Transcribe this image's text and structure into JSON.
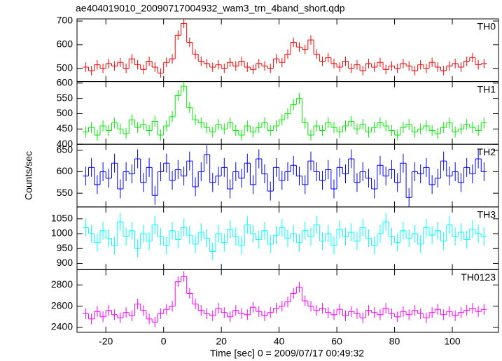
{
  "chart_data": {
    "type": "line",
    "title": "ae404019010_20090717004932_wam3_trn_4band_short.qdp",
    "xlabel": "Time [sec] 0 = 2009/07/17 00:49:32",
    "ylabel": "Counts/sec",
    "xlim": [
      -30,
      116
    ],
    "xticks": [
      -20,
      0,
      20,
      40,
      60,
      80,
      100
    ],
    "bin_width": 2,
    "x": [
      -27,
      -25,
      -23,
      -21,
      -19,
      -17,
      -15,
      -13,
      -11,
      -9,
      -7,
      -5,
      -3,
      -1,
      1,
      3,
      5,
      7,
      9,
      11,
      13,
      15,
      17,
      19,
      21,
      23,
      25,
      27,
      29,
      31,
      33,
      35,
      37,
      39,
      41,
      43,
      45,
      47,
      49,
      51,
      53,
      55,
      57,
      59,
      61,
      63,
      65,
      67,
      69,
      71,
      73,
      75,
      77,
      79,
      81,
      83,
      85,
      87,
      89,
      91,
      93,
      95,
      97,
      99,
      101,
      103,
      105,
      107,
      109,
      111
    ],
    "series": [
      {
        "name": "TH0",
        "color": "#ff0000",
        "error": 20,
        "ylim": [
          444,
          709
        ],
        "yticks": [
          500,
          600,
          700
        ],
        "values": [
          505,
          490,
          515,
          500,
          520,
          510,
          525,
          500,
          540,
          515,
          495,
          530,
          505,
          480,
          525,
          540,
          640,
          690,
          610,
          560,
          530,
          520,
          505,
          515,
          500,
          525,
          510,
          530,
          505,
          495,
          520,
          510,
          500,
          540,
          525,
          560,
          610,
          590,
          580,
          620,
          560,
          530,
          545,
          520,
          505,
          530,
          500,
          515,
          490,
          520,
          505,
          525,
          495,
          510,
          500,
          520,
          510,
          490,
          515,
          500,
          525,
          505,
          490,
          510,
          520,
          505,
          530,
          545,
          515,
          520
        ]
      },
      {
        "name": "TH1",
        "color": "#00ee00",
        "error": 18,
        "ylim": [
          400,
          605
        ],
        "yticks": [
          400,
          450,
          500,
          550,
          600
        ],
        "values": [
          440,
          455,
          430,
          460,
          445,
          470,
          450,
          435,
          480,
          455,
          465,
          445,
          475,
          430,
          460,
          490,
          560,
          590,
          520,
          480,
          470,
          455,
          440,
          465,
          450,
          470,
          445,
          430,
          460,
          440,
          455,
          470,
          445,
          460,
          480,
          500,
          530,
          550,
          470,
          430,
          460,
          445,
          470,
          455,
          440,
          460,
          475,
          450,
          465,
          440,
          455,
          470,
          460,
          445,
          430,
          455,
          465,
          440,
          450,
          460,
          445,
          435,
          455,
          470,
          440,
          450,
          465,
          455,
          445,
          470
        ]
      },
      {
        "name": "TH2",
        "color": "#0000ff",
        "error": 22,
        "ylim": [
          518,
          664
        ],
        "yticks": [
          550,
          600,
          650
        ],
        "values": [
          590,
          610,
          570,
          600,
          585,
          620,
          560,
          600,
          595,
          630,
          575,
          610,
          545,
          600,
          620,
          580,
          605,
          590,
          625,
          565,
          600,
          640,
          575,
          590,
          610,
          560,
          600,
          585,
          620,
          570,
          630,
          595,
          555,
          610,
          580,
          600,
          615,
          590,
          570,
          625,
          600,
          580,
          605,
          560,
          610,
          595,
          630,
          575,
          600,
          585,
          560,
          615,
          590,
          605,
          575,
          620,
          540,
          600,
          595,
          610,
          570,
          585,
          625,
          590,
          600,
          575,
          610,
          595,
          630,
          600
        ]
      },
      {
        "name": "TH3",
        "color": "#00ffff",
        "error": 30,
        "ylim": [
          879,
          1090
        ],
        "yticks": [
          900,
          950,
          1000,
          1050
        ],
        "values": [
          1020,
          1000,
          970,
          1010,
          985,
          960,
          1040,
          990,
          1010,
          950,
          1000,
          975,
          1030,
          990,
          960,
          1010,
          980,
          1020,
          995,
          965,
          1005,
          985,
          940,
          1000,
          970,
          1015,
          990,
          960,
          1030,
          1000,
          980,
          1010,
          965,
          995,
          1020,
          985,
          1000,
          970,
          1010,
          990,
          1030,
          975,
          1000,
          960,
          1015,
          990,
          1005,
          975,
          1020,
          985,
          960,
          1000,
          1040,
          990,
          970,
          1010,
          985,
          1000,
          965,
          1020,
          995,
          1010,
          975,
          1030,
          990,
          1005,
          980,
          1015,
          1000,
          990
        ]
      },
      {
        "name": "TH0123",
        "color": "#ff00ff",
        "error": 50,
        "ylim": [
          2354,
          2944
        ],
        "yticks": [
          2400,
          2600,
          2800
        ],
        "values": [
          2530,
          2480,
          2550,
          2500,
          2560,
          2520,
          2490,
          2540,
          2510,
          2620,
          2560,
          2480,
          2450,
          2530,
          2570,
          2600,
          2830,
          2880,
          2720,
          2620,
          2560,
          2530,
          2510,
          2580,
          2540,
          2500,
          2560,
          2530,
          2520,
          2590,
          2550,
          2510,
          2540,
          2580,
          2600,
          2640,
          2720,
          2780,
          2650,
          2600,
          2560,
          2580,
          2540,
          2520,
          2570,
          2510,
          2550,
          2530,
          2490,
          2560,
          2540,
          2520,
          2580,
          2530,
          2500,
          2550,
          2520,
          2560,
          2530,
          2490,
          2540,
          2570,
          2520,
          2550,
          2510,
          2540,
          2560,
          2580,
          2550,
          2570
        ]
      }
    ]
  }
}
